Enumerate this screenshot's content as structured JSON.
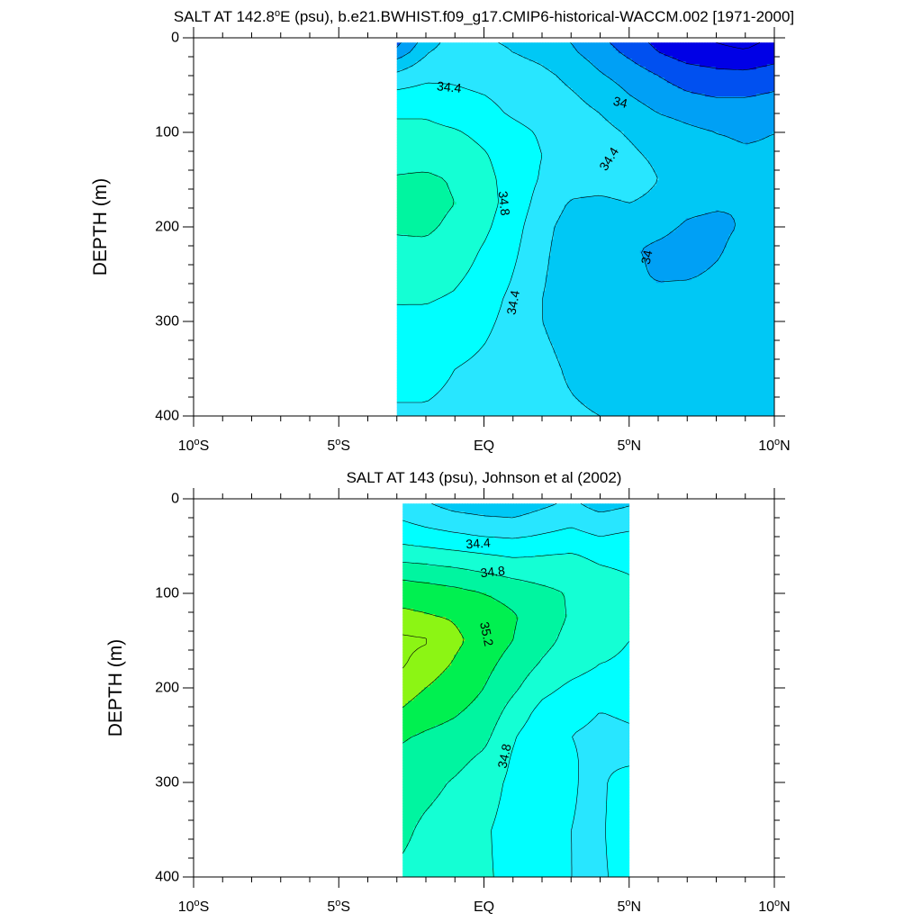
{
  "colors": {
    "fill_scale": [
      "#0000e6",
      "#0050f0",
      "#00a0f5",
      "#00c8f5",
      "#28e6ff",
      "#00ffff",
      "#14ffd4",
      "#00f5a0",
      "#00f050",
      "#8cf514"
    ],
    "fill_levels": [
      33.4,
      33.6,
      33.8,
      34.0,
      34.2,
      34.4,
      34.6,
      34.8,
      35.0,
      35.2,
      35.4
    ],
    "contour_line": "#000000"
  },
  "chart_data": [
    {
      "type": "contour",
      "title": "SALT AT 142.8",
      "title_sup": "o",
      "title_rest": "E (psu), b.e21.BWHIST.f09_g17.CMIP6-historical-WACCM.002 [1971-2000]",
      "ylabel": "DEPTH (m)",
      "xlim": [
        -10,
        10
      ],
      "ylim": [
        0,
        400
      ],
      "y_reversed": true,
      "x_ticks": [
        {
          "value": -10,
          "text": "10",
          "deg": "o",
          "hemi": "S"
        },
        {
          "value": -5,
          "text": "5",
          "deg": "o",
          "hemi": "S"
        },
        {
          "value": 0,
          "text": "EQ",
          "deg": "",
          "hemi": ""
        },
        {
          "value": 5,
          "text": "5",
          "deg": "o",
          "hemi": "N"
        },
        {
          "value": 10,
          "text": "10",
          "deg": "o",
          "hemi": "N"
        }
      ],
      "y_ticks": [
        "0",
        "100",
        "200",
        "300",
        "400"
      ],
      "data_extent": {
        "lon": [
          -3,
          10
        ],
        "depth": [
          5,
          400
        ]
      },
      "lon": [
        -3,
        -2,
        -1,
        0,
        1,
        2,
        3,
        4,
        5,
        6,
        7,
        8,
        9,
        10
      ],
      "depth": [
        5,
        15,
        25,
        40,
        60,
        80,
        100,
        125,
        150,
        175,
        200,
        225,
        250,
        275,
        300,
        350,
        400
      ],
      "salinity": [
        [
          33.75,
          34.1,
          34.3,
          34.22,
          34.18,
          34.1,
          34.0,
          33.85,
          33.7,
          33.55,
          33.45,
          33.4,
          33.35,
          33.45
        ],
        [
          33.85,
          34.18,
          34.32,
          34.25,
          34.2,
          34.12,
          34.03,
          33.9,
          33.75,
          33.6,
          33.5,
          33.45,
          33.42,
          33.5
        ],
        [
          34.05,
          34.25,
          34.35,
          34.3,
          34.25,
          34.18,
          34.08,
          33.95,
          33.82,
          33.68,
          33.58,
          33.55,
          33.52,
          33.58
        ],
        [
          34.25,
          34.35,
          34.38,
          34.36,
          34.3,
          34.25,
          34.15,
          34.02,
          33.92,
          33.8,
          33.7,
          33.65,
          33.65,
          33.7
        ],
        [
          34.45,
          34.48,
          34.42,
          34.4,
          34.35,
          34.3,
          34.22,
          34.12,
          34.0,
          33.9,
          33.82,
          33.78,
          33.78,
          33.82
        ],
        [
          34.58,
          34.58,
          34.52,
          34.45,
          34.38,
          34.33,
          34.28,
          34.2,
          34.1,
          34.0,
          33.95,
          33.9,
          33.9,
          33.92
        ],
        [
          34.65,
          34.65,
          34.62,
          34.55,
          34.45,
          34.38,
          34.32,
          34.26,
          34.18,
          34.1,
          34.04,
          34.0,
          33.98,
          34.0
        ],
        [
          34.72,
          34.72,
          34.7,
          34.62,
          34.5,
          34.4,
          34.34,
          34.3,
          34.24,
          34.16,
          34.08,
          34.04,
          34.02,
          34.02
        ],
        [
          34.82,
          34.84,
          34.78,
          34.66,
          34.52,
          34.38,
          34.3,
          34.3,
          34.32,
          34.2,
          34.08,
          34.04,
          34.02,
          34.02
        ],
        [
          34.86,
          34.86,
          34.8,
          34.68,
          34.52,
          34.32,
          34.18,
          34.15,
          34.2,
          34.14,
          34.04,
          34.02,
          34.0,
          34.02
        ],
        [
          34.82,
          34.83,
          34.76,
          34.64,
          34.48,
          34.26,
          34.12,
          34.06,
          34.05,
          34.04,
          33.98,
          33.96,
          34.02,
          34.06
        ],
        [
          34.76,
          34.76,
          34.7,
          34.58,
          34.44,
          34.24,
          34.1,
          34.04,
          34.02,
          33.97,
          33.94,
          33.98,
          34.06,
          34.1
        ],
        [
          34.7,
          34.7,
          34.64,
          34.54,
          34.4,
          34.22,
          34.1,
          34.06,
          34.04,
          33.98,
          33.98,
          34.02,
          34.08,
          34.12
        ],
        [
          34.62,
          34.62,
          34.58,
          34.48,
          34.36,
          34.2,
          34.12,
          34.08,
          34.06,
          34.04,
          34.06,
          34.08,
          34.1,
          34.12
        ],
        [
          34.55,
          34.55,
          34.52,
          34.44,
          34.34,
          34.2,
          34.14,
          34.1,
          34.08,
          34.08,
          34.1,
          34.1,
          34.12,
          34.14
        ],
        [
          34.45,
          34.45,
          34.4,
          34.36,
          34.3,
          34.24,
          34.18,
          34.14,
          34.12,
          34.12,
          34.14,
          34.14,
          34.14,
          34.16
        ],
        [
          34.38,
          34.38,
          34.36,
          34.32,
          34.28,
          34.24,
          34.22,
          34.2,
          34.18,
          34.18,
          34.18,
          34.18,
          34.18,
          34.18
        ]
      ],
      "contour_labels": [
        {
          "text": "34.4",
          "lon": -1.2,
          "depth": 52,
          "angle": 6
        },
        {
          "text": "34",
          "lon": 4.7,
          "depth": 68,
          "angle": 14
        },
        {
          "text": "34.4",
          "lon": 4.3,
          "depth": 128,
          "angle": -58
        },
        {
          "text": "34.8",
          "lon": 0.7,
          "depth": 175,
          "angle": 84
        },
        {
          "text": "34",
          "lon": 5.6,
          "depth": 232,
          "angle": -78
        },
        {
          "text": "34.4",
          "lon": 1.0,
          "depth": 280,
          "angle": -80
        }
      ]
    },
    {
      "type": "contour",
      "title": "SALT AT 143 (psu), Johnson et al (2002)",
      "title_sup": "",
      "title_rest": "",
      "ylabel": "DEPTH (m)",
      "xlim": [
        -10,
        10
      ],
      "ylim": [
        0,
        400
      ],
      "y_reversed": true,
      "x_ticks": [
        {
          "value": -10,
          "text": "10",
          "deg": "o",
          "hemi": "S"
        },
        {
          "value": -5,
          "text": "5",
          "deg": "o",
          "hemi": "S"
        },
        {
          "value": 0,
          "text": "EQ",
          "deg": "",
          "hemi": ""
        },
        {
          "value": 5,
          "text": "5",
          "deg": "o",
          "hemi": "N"
        },
        {
          "value": 10,
          "text": "10",
          "deg": "o",
          "hemi": "N"
        }
      ],
      "y_ticks": [
        "0",
        "100",
        "200",
        "300",
        "400"
      ],
      "data_extent": {
        "lon": [
          -2.8,
          5
        ],
        "depth": [
          5,
          400
        ]
      },
      "lon": [
        -2.8,
        -2,
        -1,
        0,
        1,
        2,
        3,
        4,
        5
      ],
      "depth": [
        5,
        20,
        40,
        60,
        80,
        100,
        125,
        150,
        175,
        200,
        225,
        250,
        275,
        300,
        350,
        400
      ],
      "salinity": [
        [
          34.3,
          34.22,
          34.12,
          34.08,
          34.05,
          34.15,
          34.25,
          34.1,
          34.18
        ],
        [
          34.38,
          34.32,
          34.26,
          34.22,
          34.2,
          34.28,
          34.34,
          34.26,
          34.3
        ],
        [
          34.52,
          34.48,
          34.44,
          34.4,
          34.38,
          34.42,
          34.46,
          34.4,
          34.44
        ],
        [
          34.72,
          34.7,
          34.66,
          34.62,
          34.58,
          34.6,
          34.62,
          34.56,
          34.54
        ],
        [
          34.95,
          34.92,
          34.88,
          34.82,
          34.76,
          34.72,
          34.7,
          34.64,
          34.6
        ],
        [
          35.12,
          35.1,
          35.06,
          35.0,
          34.94,
          34.86,
          34.78,
          34.7,
          34.64
        ],
        [
          35.25,
          35.22,
          35.18,
          35.1,
          35.02,
          34.9,
          34.78,
          34.7,
          34.64
        ],
        [
          35.45,
          35.42,
          35.24,
          35.12,
          35.0,
          34.86,
          34.74,
          34.64,
          34.6
        ],
        [
          35.42,
          35.3,
          35.18,
          35.06,
          34.92,
          34.78,
          34.68,
          34.6,
          34.58
        ],
        [
          35.3,
          35.2,
          35.1,
          35.0,
          34.84,
          34.66,
          34.56,
          34.5,
          34.5
        ],
        [
          35.18,
          35.08,
          35.02,
          34.94,
          34.72,
          34.54,
          34.46,
          34.4,
          34.42
        ],
        [
          35.02,
          34.98,
          34.94,
          34.86,
          34.62,
          34.48,
          34.4,
          34.36,
          34.38
        ],
        [
          34.96,
          34.92,
          34.86,
          34.76,
          34.58,
          34.46,
          34.42,
          34.34,
          34.32
        ],
        [
          34.9,
          34.86,
          34.78,
          34.68,
          34.56,
          34.46,
          34.42,
          34.34,
          34.58
        ],
        [
          34.84,
          34.76,
          34.7,
          34.62,
          34.54,
          34.46,
          34.4,
          34.36,
          34.58
        ],
        [
          34.76,
          34.72,
          34.68,
          34.62,
          34.56,
          34.5,
          34.4,
          34.36,
          34.5
        ]
      ],
      "contour_labels": [
        {
          "text": "34.4",
          "lon": -0.2,
          "depth": 47,
          "angle": -4
        },
        {
          "text": "34.8",
          "lon": 0.3,
          "depth": 77,
          "angle": -6
        },
        {
          "text": "35.2",
          "lon": 0.1,
          "depth": 143,
          "angle": 78
        },
        {
          "text": "34.8",
          "lon": 0.7,
          "depth": 272,
          "angle": -78
        }
      ]
    }
  ]
}
